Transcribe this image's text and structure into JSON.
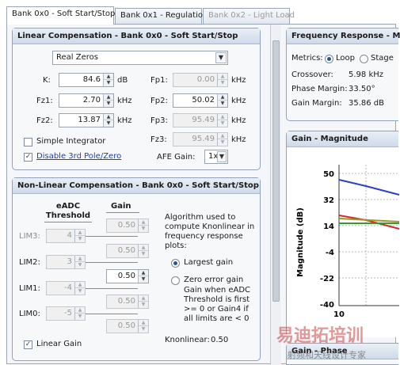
{
  "tabs": [
    {
      "label": "Bank 0x0 - Soft Start/Stop",
      "state": "active"
    },
    {
      "label": "Bank 0x1 - Regulation",
      "state": "normal"
    },
    {
      "label": "Bank 0x2 - Light Load",
      "state": "disabled"
    }
  ],
  "linear": {
    "title": "Linear Compensation - Bank 0x0 - Soft Start/Stop",
    "mode_value": "Real Zeros",
    "fields": {
      "k": {
        "label": "K:",
        "value": "84.6",
        "unit": "dB"
      },
      "fz1": {
        "label": "Fz1:",
        "value": "2.70",
        "unit": "kHz"
      },
      "fz2": {
        "label": "Fz2:",
        "value": "13.87",
        "unit": "kHz"
      },
      "fp1": {
        "label": "Fp1:",
        "value": "0.00",
        "unit": "kHz"
      },
      "fp2": {
        "label": "Fp2:",
        "value": "50.02",
        "unit": "kHz"
      },
      "fp3": {
        "label": "Fp3:",
        "value": "95.49",
        "unit": "kHz"
      },
      "fz3": {
        "label": "Fz3:",
        "value": "95.49",
        "unit": "kHz"
      }
    },
    "simple_integrator_label": "Simple Integrator",
    "disable_3rd_label": "Disable 3rd Pole/Zero",
    "afe_gain_label": "AFE Gain:",
    "afe_gain_value": "1x"
  },
  "nonlinear": {
    "title": "Non-Linear Compensation - Bank 0x0 - Soft Start/Stop",
    "col_threshold": "eADC Threshold",
    "col_gain": "Gain",
    "rows": [
      {
        "label": "LIM3:",
        "threshold": "4",
        "gain_above": "0.50"
      },
      {
        "label": "LIM2:",
        "threshold": "3",
        "gain_above": "0.50"
      },
      {
        "label": "LIM1:",
        "threshold": "-4",
        "gain_above": "0.50"
      },
      {
        "label": "LIM0:",
        "threshold": "-5",
        "gain_above": "0.50"
      }
    ],
    "gain_last": "0.50",
    "description": "Algorithm used to compute Knonlinear in frequency response plots:",
    "option_largest": "Largest gain",
    "option_zero_error": "Zero error gain",
    "zero_error_note": "Gain when eADC Threshold is first >= 0 or Gain4 if all limits are < 0",
    "knonlinear_label": "Knonlinear:",
    "knonlinear_value": "0.50",
    "linear_gain_label": "Linear Gain"
  },
  "freq": {
    "title": "Frequency Response - M",
    "metrics_label": "Metrics:",
    "loop_label": "Loop",
    "stage_label": "Stage",
    "rows": [
      {
        "label": "Crossover:",
        "value": "5.98 kHz"
      },
      {
        "label": "Phase Margin:",
        "value": "33.50°"
      },
      {
        "label": "Gain Margin:",
        "value": "35.86 dB"
      }
    ]
  },
  "gain_mag": {
    "title": "Gain - Magnitude",
    "ylabel": "Magnitude (dB)",
    "yticks": [
      "50",
      "32",
      "14",
      "-4",
      "-22",
      "-40"
    ],
    "xtick": "10",
    "colors": {
      "blue": "#2b3fd1",
      "red": "#d62a2a",
      "green": "#3a9a3a",
      "olive": "#9a9a22"
    }
  },
  "gain_phase": {
    "title": "Gain - Phase"
  },
  "watermark": {
    "cn": "易迪拓培训",
    "sub": "射频和天线设计专家"
  }
}
